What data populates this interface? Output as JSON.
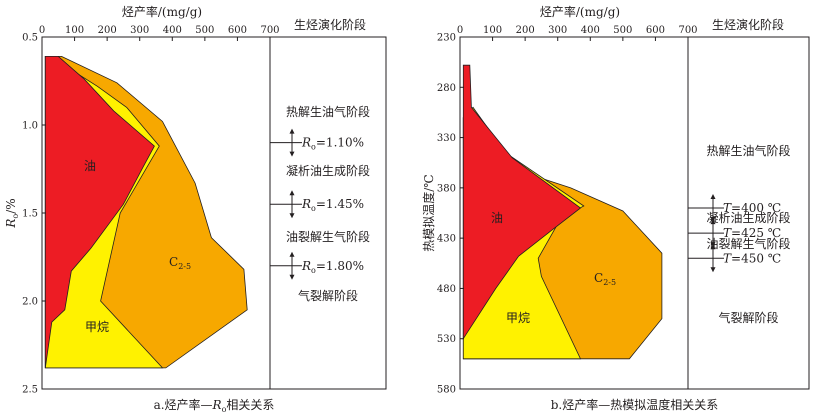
{
  "colors": {
    "oil": "#ed1c24",
    "methane": "#fff200",
    "c25": "#f7a800",
    "overlap": "#f7a800",
    "outline": "#231f20"
  },
  "chart_data": [
    {
      "type": "area",
      "caption": "a.烃产率—Ro相关关系",
      "x_label": "烃产率/(mg/g)",
      "y_label": "Ro/%",
      "y_label_main": "R",
      "y_label_sub": "o",
      "y_label_rest": "/%",
      "xlim": [
        0,
        700
      ],
      "ylim": [
        0.5,
        2.5
      ],
      "x_ticks": [
        "0",
        "100",
        "200",
        "300",
        "400",
        "500",
        "600",
        "700"
      ],
      "y_ticks": [
        "0.5",
        "1.0",
        "1.5",
        "2.0",
        "2.5"
      ],
      "stage_header": "生烃演化阶段",
      "stages": [
        "热解生油气阶段",
        "凝析油生成阶段",
        "油裂解生气阶段",
        "气裂解阶段"
      ],
      "boundaries": [
        {
          "prefix": "R",
          "sub": "o",
          "suffix": "=1.10%",
          "value": 1.1
        },
        {
          "prefix": "R",
          "sub": "o",
          "suffix": "=1.45%",
          "value": 1.45
        },
        {
          "prefix": "R",
          "sub": "o",
          "suffix": "=1.80%",
          "value": 1.8
        }
      ],
      "regions": [
        {
          "name": "C2-5",
          "label_main": "C",
          "label_sub": "2-5",
          "fill": "c25",
          "points": [
            [
              60,
              0.61
            ],
            [
              230,
              0.76
            ],
            [
              370,
              0.98
            ],
            [
              470,
              1.33
            ],
            [
              520,
              1.64
            ],
            [
              620,
              1.82
            ],
            [
              630,
              2.05
            ],
            [
              380,
              2.38
            ],
            [
              10,
              2.38
            ],
            [
              10,
              0.61
            ]
          ]
        },
        {
          "name": "甲烷",
          "label": "甲烷",
          "fill": "methane",
          "points": [
            [
              25,
              0.61
            ],
            [
              170,
              0.78
            ],
            [
              260,
              0.9
            ],
            [
              360,
              1.12
            ],
            [
              240,
              1.5
            ],
            [
              180,
              2.0
            ],
            [
              370,
              2.38
            ],
            [
              10,
              2.38
            ],
            [
              10,
              0.61
            ]
          ]
        },
        {
          "name": "油",
          "label": "油",
          "fill": "oil",
          "points": [
            [
              10,
              0.61
            ],
            [
              50,
              0.61
            ],
            [
              130,
              0.74
            ],
            [
              220,
              0.92
            ],
            [
              345,
              1.12
            ],
            [
              310,
              1.24
            ],
            [
              250,
              1.45
            ],
            [
              150,
              1.7
            ],
            [
              90,
              1.83
            ],
            [
              70,
              2.05
            ],
            [
              30,
              2.12
            ],
            [
              10,
              2.38
            ]
          ]
        }
      ]
    },
    {
      "type": "area",
      "caption": "b.烃产率—热模拟温度相关关系",
      "x_label": "烃产率/(mg/g)",
      "y_label": "热模拟温度/℃",
      "xlim": [
        0,
        700
      ],
      "ylim": [
        230,
        580
      ],
      "x_ticks": [
        "0",
        "100",
        "200",
        "300",
        "400",
        "500",
        "600",
        "700"
      ],
      "y_ticks": [
        "230",
        "280",
        "330",
        "380",
        "430",
        "480",
        "530",
        "580"
      ],
      "stage_header": "生烃演化阶段",
      "stages": [
        "热解生油气阶段",
        "凝析油生成阶段",
        "油裂解生气阶段",
        "气裂解阶段"
      ],
      "boundaries": [
        {
          "prefix": "T",
          "suffix": "=400 ℃",
          "value": 400
        },
        {
          "prefix": "T",
          "suffix": "=425 ℃",
          "value": 425
        },
        {
          "prefix": "T",
          "suffix": "=450 ℃",
          "value": 450
        }
      ],
      "regions": [
        {
          "name": "C2-5",
          "label_main": "C",
          "label_sub": "2-5",
          "fill": "c25",
          "points": [
            [
              40,
              300
            ],
            [
              100,
              330
            ],
            [
              170,
              362
            ],
            [
              340,
              380
            ],
            [
              500,
              403
            ],
            [
              620,
              445
            ],
            [
              620,
              510
            ],
            [
              520,
              550
            ],
            [
              10,
              550
            ],
            [
              10,
              310
            ]
          ]
        },
        {
          "name": "甲烷",
          "label": "甲烷",
          "fill": "methane",
          "points": [
            [
              40,
              300
            ],
            [
              140,
              345
            ],
            [
              380,
              398
            ],
            [
              310,
              410
            ],
            [
              240,
              450
            ],
            [
              250,
              468
            ],
            [
              370,
              550
            ],
            [
              10,
              550
            ],
            [
              10,
              310
            ]
          ]
        },
        {
          "name": "油",
          "label": "油",
          "fill": "oil",
          "points": [
            [
              10,
              258
            ],
            [
              30,
              258
            ],
            [
              35,
              300
            ],
            [
              160,
              350
            ],
            [
              370,
              400
            ],
            [
              290,
              420
            ],
            [
              180,
              448
            ],
            [
              110,
              480
            ],
            [
              10,
              530
            ]
          ]
        }
      ]
    }
  ]
}
